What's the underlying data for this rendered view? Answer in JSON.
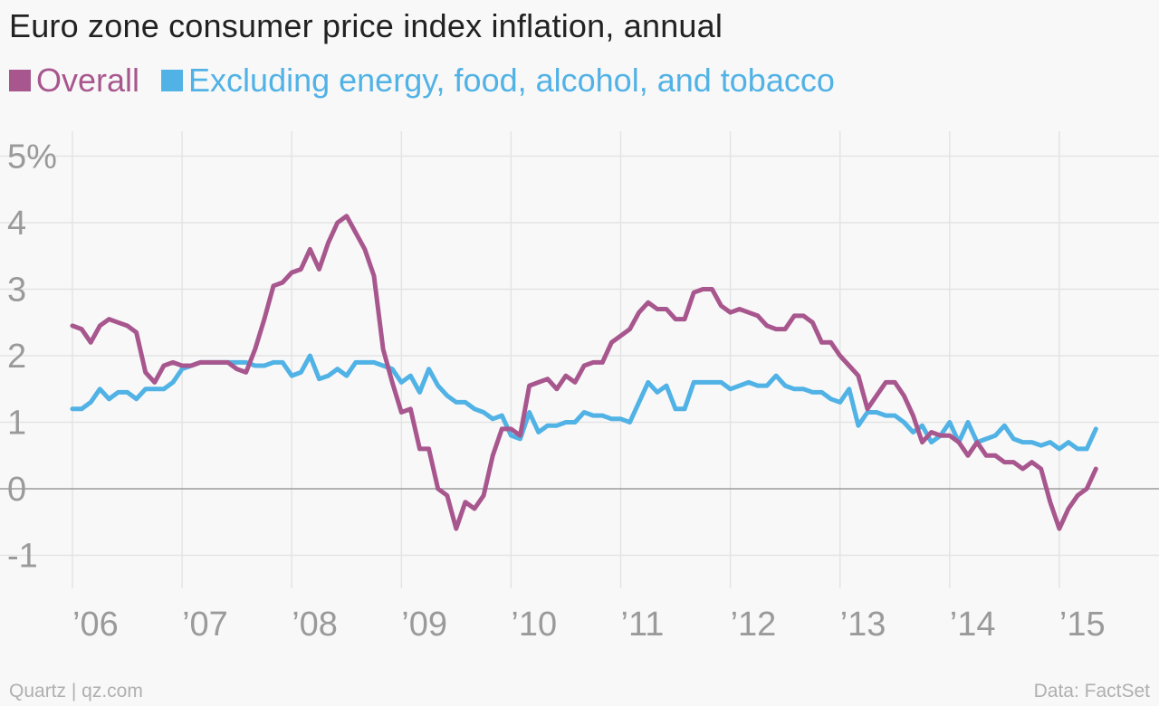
{
  "chart_data": {
    "type": "line",
    "title": "Euro zone consumer price index inflation, annual",
    "ylim": [
      -1.5,
      5.5
    ],
    "xlim": [
      2006.0,
      2015.75
    ],
    "y_ticks": [
      5,
      4,
      3,
      2,
      1,
      0,
      -1
    ],
    "y_tick_labels": [
      "5%",
      "4",
      "3",
      "2",
      "1",
      "0",
      "-1"
    ],
    "x_ticks": [
      2006,
      2007,
      2008,
      2009,
      2010,
      2011,
      2012,
      2013,
      2014,
      2015
    ],
    "x_tick_labels": [
      "’06",
      "’07",
      "’08",
      "’09",
      "’10",
      "’11",
      "’12",
      "’13",
      "’14",
      "’15"
    ],
    "x_start": "2006-01",
    "x_step": "monthly",
    "grid": true,
    "legend_position": "top-left",
    "series": [
      {
        "name": "Overall",
        "color": "#a8578e",
        "values": [
          2.45,
          2.4,
          2.2,
          2.45,
          2.55,
          2.5,
          2.45,
          2.35,
          1.75,
          1.6,
          1.85,
          1.9,
          1.85,
          1.85,
          1.9,
          1.9,
          1.9,
          1.9,
          1.8,
          1.75,
          2.1,
          2.55,
          3.05,
          3.1,
          3.25,
          3.3,
          3.6,
          3.3,
          3.7,
          4.0,
          4.1,
          3.85,
          3.6,
          3.2,
          2.1,
          1.6,
          1.15,
          1.2,
          0.6,
          0.6,
          0.0,
          -0.1,
          -0.6,
          -0.2,
          -0.3,
          -0.1,
          0.5,
          0.9,
          0.9,
          0.8,
          1.55,
          1.6,
          1.65,
          1.5,
          1.7,
          1.6,
          1.85,
          1.9,
          1.9,
          2.2,
          2.3,
          2.4,
          2.65,
          2.8,
          2.7,
          2.7,
          2.55,
          2.55,
          2.95,
          3.0,
          3.0,
          2.75,
          2.65,
          2.7,
          2.65,
          2.6,
          2.45,
          2.4,
          2.4,
          2.6,
          2.6,
          2.5,
          2.2,
          2.2,
          2.0,
          1.85,
          1.7,
          1.2,
          1.4,
          1.6,
          1.6,
          1.4,
          1.1,
          0.7,
          0.85,
          0.8,
          0.8,
          0.7,
          0.5,
          0.7,
          0.5,
          0.5,
          0.4,
          0.4,
          0.3,
          0.4,
          0.3,
          -0.2,
          -0.6,
          -0.3,
          -0.1,
          0.0,
          0.3
        ]
      },
      {
        "name": "Excluding energy, food, alcohol, and tobacco",
        "color": "#51b2e5",
        "values": [
          1.2,
          1.2,
          1.3,
          1.5,
          1.35,
          1.45,
          1.45,
          1.35,
          1.5,
          1.5,
          1.5,
          1.6,
          1.8,
          1.85,
          1.9,
          1.9,
          1.9,
          1.9,
          1.9,
          1.9,
          1.85,
          1.85,
          1.9,
          1.9,
          1.7,
          1.75,
          2.0,
          1.65,
          1.7,
          1.8,
          1.7,
          1.9,
          1.9,
          1.9,
          1.85,
          1.8,
          1.6,
          1.7,
          1.45,
          1.8,
          1.55,
          1.4,
          1.3,
          1.3,
          1.2,
          1.15,
          1.05,
          1.1,
          0.8,
          0.75,
          1.15,
          0.85,
          0.95,
          0.95,
          1.0,
          1.0,
          1.15,
          1.1,
          1.1,
          1.05,
          1.05,
          1.0,
          1.3,
          1.6,
          1.45,
          1.55,
          1.2,
          1.2,
          1.6,
          1.6,
          1.6,
          1.6,
          1.5,
          1.55,
          1.6,
          1.55,
          1.55,
          1.7,
          1.55,
          1.5,
          1.5,
          1.45,
          1.45,
          1.35,
          1.3,
          1.5,
          0.95,
          1.15,
          1.15,
          1.1,
          1.1,
          1.0,
          0.85,
          0.95,
          0.7,
          0.8,
          1.0,
          0.7,
          1.0,
          0.7,
          0.75,
          0.8,
          0.95,
          0.75,
          0.7,
          0.7,
          0.65,
          0.7,
          0.6,
          0.7,
          0.6,
          0.6,
          0.9
        ]
      }
    ]
  },
  "footer": {
    "source_left": "Quartz | qz.com",
    "source_right": "Data: FactSet"
  }
}
